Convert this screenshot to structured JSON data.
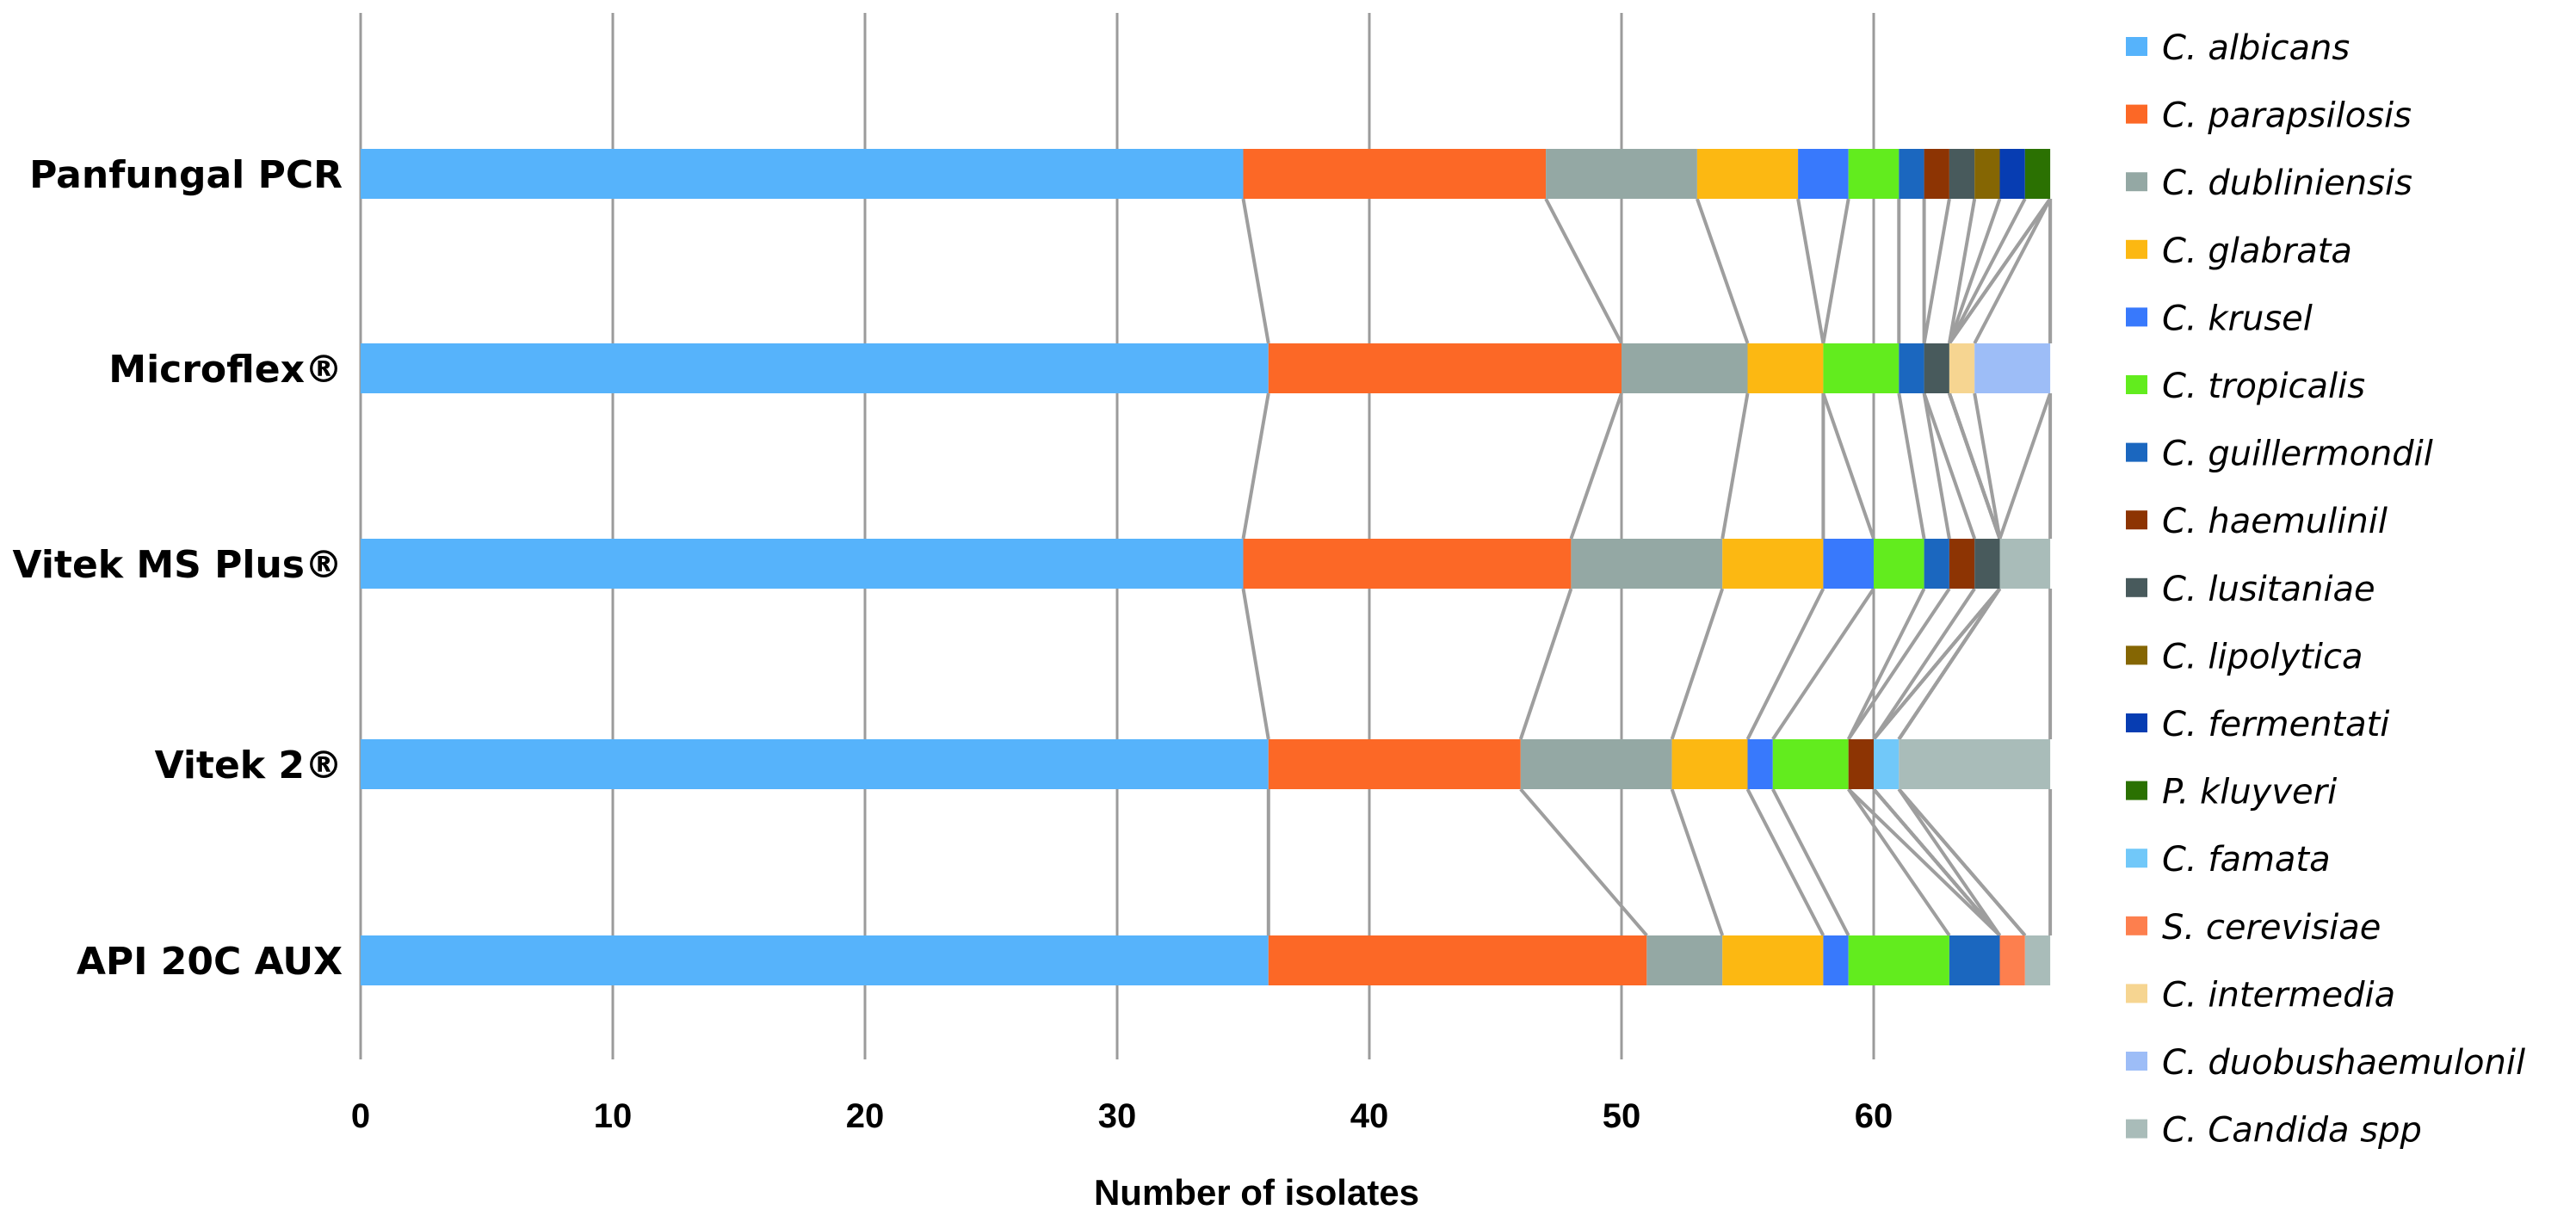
{
  "chart_data": {
    "type": "bar",
    "orientation": "horizontal",
    "stacked": true,
    "series_lines": true,
    "title": "",
    "xlabel": "Number of isolates",
    "ylabel": "",
    "xlim": [
      0,
      67
    ],
    "xticks": [
      0,
      10,
      20,
      30,
      40,
      50,
      60
    ],
    "grid": "vertical",
    "legend_position": "right",
    "categories": [
      "Panfungal PCR",
      "Microflex®",
      "Vitek MS Plus®",
      "Vitek 2®",
      "API 20C AUX"
    ],
    "series": [
      {
        "name": "C. albicans",
        "color": "#56b3fb",
        "values": [
          35,
          36,
          35,
          36,
          36
        ]
      },
      {
        "name": "C. parapsilosis",
        "color": "#fc6826",
        "values": [
          12,
          14,
          13,
          10,
          15
        ]
      },
      {
        "name": "C. dubliniensis",
        "color": "#94a8a4",
        "values": [
          6,
          5,
          6,
          6,
          3
        ]
      },
      {
        "name": "C. glabrata",
        "color": "#fcb812",
        "values": [
          4,
          3,
          4,
          3,
          4
        ]
      },
      {
        "name": "C. krusel",
        "color": "#3879fc",
        "values": [
          2,
          0,
          2,
          1,
          1
        ]
      },
      {
        "name": "C. tropicalis",
        "color": "#62ec1e",
        "values": [
          2,
          3,
          2,
          3,
          4
        ]
      },
      {
        "name": "C. guillermondil",
        "color": "#1b67bf",
        "values": [
          1,
          1,
          1,
          0,
          2
        ]
      },
      {
        "name": "C. haemulinil",
        "color": "#8d3403",
        "values": [
          1,
          0,
          1,
          1,
          0
        ]
      },
      {
        "name": "C. lusitaniae",
        "color": "#485a5c",
        "values": [
          1,
          1,
          1,
          0,
          0
        ]
      },
      {
        "name": "C. lipolytica",
        "color": "#856603",
        "values": [
          1,
          0,
          0,
          0,
          0
        ]
      },
      {
        "name": "C. fermentati",
        "color": "#073db2",
        "values": [
          1,
          0,
          0,
          0,
          0
        ]
      },
      {
        "name": "P. kluyveri",
        "color": "#2b7102",
        "values": [
          1,
          0,
          0,
          0,
          0
        ]
      },
      {
        "name": "C. famata",
        "color": "#71c8f9",
        "values": [
          0,
          0,
          0,
          1,
          0
        ]
      },
      {
        "name": "S. cerevisiae",
        "color": "#fd7f4e",
        "values": [
          0,
          0,
          0,
          0,
          1
        ]
      },
      {
        "name": "C. intermedia",
        "color": "#f6d591",
        "values": [
          0,
          1,
          0,
          0,
          0
        ]
      },
      {
        "name": "C. duobushaemulonil",
        "color": "#9dbdf7",
        "values": [
          0,
          3,
          0,
          0,
          0
        ]
      },
      {
        "name": "C. Candida spp",
        "color": "#a9bcb9",
        "values": [
          0,
          0,
          2,
          6,
          1
        ]
      }
    ]
  }
}
